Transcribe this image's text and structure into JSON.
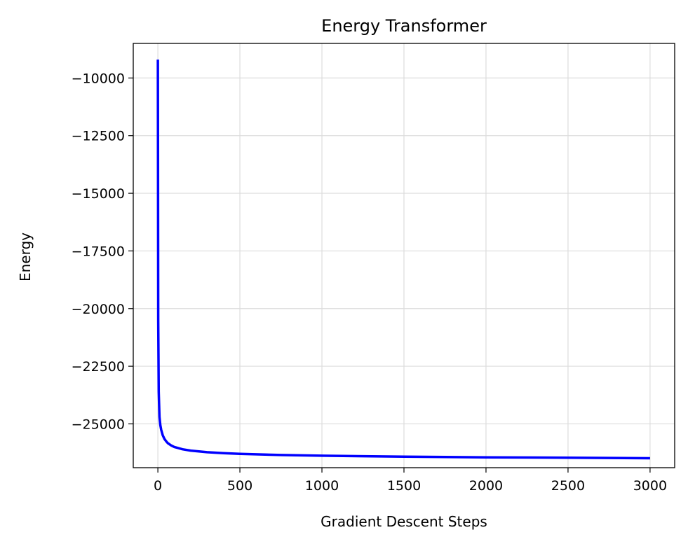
{
  "chart_data": {
    "type": "line",
    "title": "Energy Transformer",
    "xlabel": "Gradient Descent Steps",
    "ylabel": "Energy",
    "xlim": [
      -150,
      3150
    ],
    "ylim": [
      -26900,
      -8500
    ],
    "xticks": [
      0,
      500,
      1000,
      1500,
      2000,
      2500,
      3000
    ],
    "xtick_labels": [
      "0",
      "500",
      "1000",
      "1500",
      "2000",
      "2500",
      "3000"
    ],
    "yticks": [
      -10000,
      -12500,
      -15000,
      -17500,
      -20000,
      -22500,
      -25000
    ],
    "ytick_labels": [
      "−10000",
      "−12500",
      "−15000",
      "−17500",
      "−20000",
      "−22500",
      "−25000"
    ],
    "grid": true,
    "series": [
      {
        "color": "#0000ff",
        "x": [
          0,
          2,
          5,
          10,
          15,
          20,
          30,
          40,
          50,
          60,
          80,
          100,
          150,
          200,
          300,
          400,
          500,
          750,
          1000,
          1500,
          2000,
          2500,
          3000
        ],
        "y": [
          -9200,
          -20500,
          -23600,
          -24700,
          -25050,
          -25250,
          -25500,
          -25650,
          -25750,
          -25830,
          -25930,
          -26000,
          -26100,
          -26160,
          -26230,
          -26270,
          -26300,
          -26350,
          -26380,
          -26420,
          -26450,
          -26470,
          -26490
        ]
      }
    ]
  }
}
